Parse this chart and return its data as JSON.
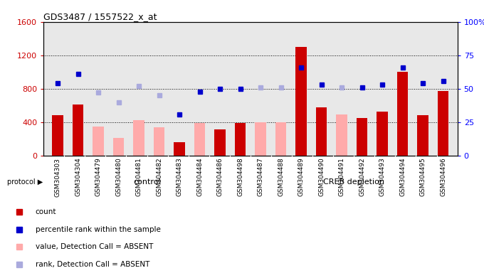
{
  "title": "GDS3487 / 1557522_x_at",
  "samples": [
    "GSM304303",
    "GSM304304",
    "GSM304479",
    "GSM304480",
    "GSM304481",
    "GSM304482",
    "GSM304483",
    "GSM304484",
    "GSM304486",
    "GSM304498",
    "GSM304487",
    "GSM304488",
    "GSM304489",
    "GSM304490",
    "GSM304491",
    "GSM304492",
    "GSM304493",
    "GSM304494",
    "GSM304495",
    "GSM304496"
  ],
  "n_control": 10,
  "n_creb": 10,
  "group_labels": [
    "control",
    "CREB depletion"
  ],
  "group_colors": [
    "#aaffaa",
    "#00dd00"
  ],
  "count_values": [
    480,
    610,
    null,
    null,
    null,
    null,
    160,
    null,
    310,
    390,
    null,
    null,
    1300,
    580,
    null,
    450,
    530,
    1000,
    480,
    770
  ],
  "absent_values": [
    null,
    null,
    350,
    210,
    420,
    340,
    null,
    390,
    null,
    null,
    400,
    400,
    null,
    null,
    490,
    null,
    null,
    null,
    null,
    null
  ],
  "rank_present_pct": [
    54,
    61,
    null,
    null,
    null,
    null,
    31,
    48,
    50,
    50,
    null,
    null,
    66,
    53,
    null,
    51,
    53,
    66,
    54,
    56
  ],
  "rank_absent_pct": [
    null,
    null,
    47,
    40,
    52,
    45,
    null,
    null,
    null,
    null,
    51,
    51,
    null,
    null,
    51,
    null,
    null,
    null,
    null,
    null
  ],
  "left_ylim": [
    0,
    1600
  ],
  "left_yticks": [
    0,
    400,
    800,
    1200,
    1600
  ],
  "right_ylim": [
    0,
    100
  ],
  "right_yticks": [
    0,
    25,
    50,
    75,
    100
  ],
  "right_yticklabels": [
    "0",
    "25",
    "50",
    "75",
    "100%"
  ],
  "bar_width": 0.55,
  "plot_bg": "#e8e8e8",
  "count_color": "#cc0000",
  "absent_bar_color": "#ffaaaa",
  "rank_present_color": "#0000cc",
  "rank_absent_color": "#aaaadd",
  "grid_color": "black",
  "legend_items": [
    {
      "label": "count",
      "color": "#cc0000"
    },
    {
      "label": "percentile rank within the sample",
      "color": "#0000cc"
    },
    {
      "label": "value, Detection Call = ABSENT",
      "color": "#ffaaaa"
    },
    {
      "label": "rank, Detection Call = ABSENT",
      "color": "#aaaadd"
    }
  ]
}
